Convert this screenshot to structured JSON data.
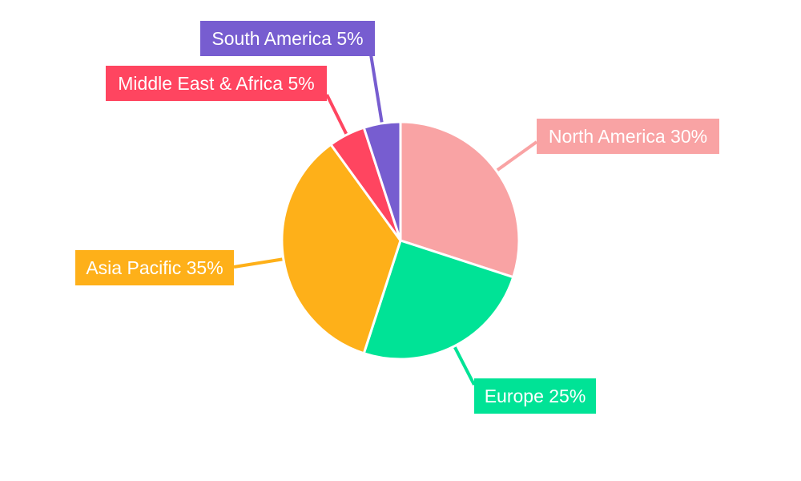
{
  "chart_data": {
    "type": "pie",
    "title": "",
    "start_angle": "12 o'clock, clockwise",
    "categories": [
      "North America",
      "Europe",
      "Asia Pacific",
      "Middle East & Africa",
      "South America"
    ],
    "values": [
      30,
      25,
      35,
      5,
      5
    ],
    "labels": [
      "North America 30%",
      "Europe 25%",
      "Asia Pacific 35%",
      "Middle East & Africa 5%",
      "South America 5%"
    ],
    "colors": [
      "#F9A3A4",
      "#00E396",
      "#FEB019",
      "#FF4560",
      "#775DD0"
    ],
    "legend": "none"
  }
}
